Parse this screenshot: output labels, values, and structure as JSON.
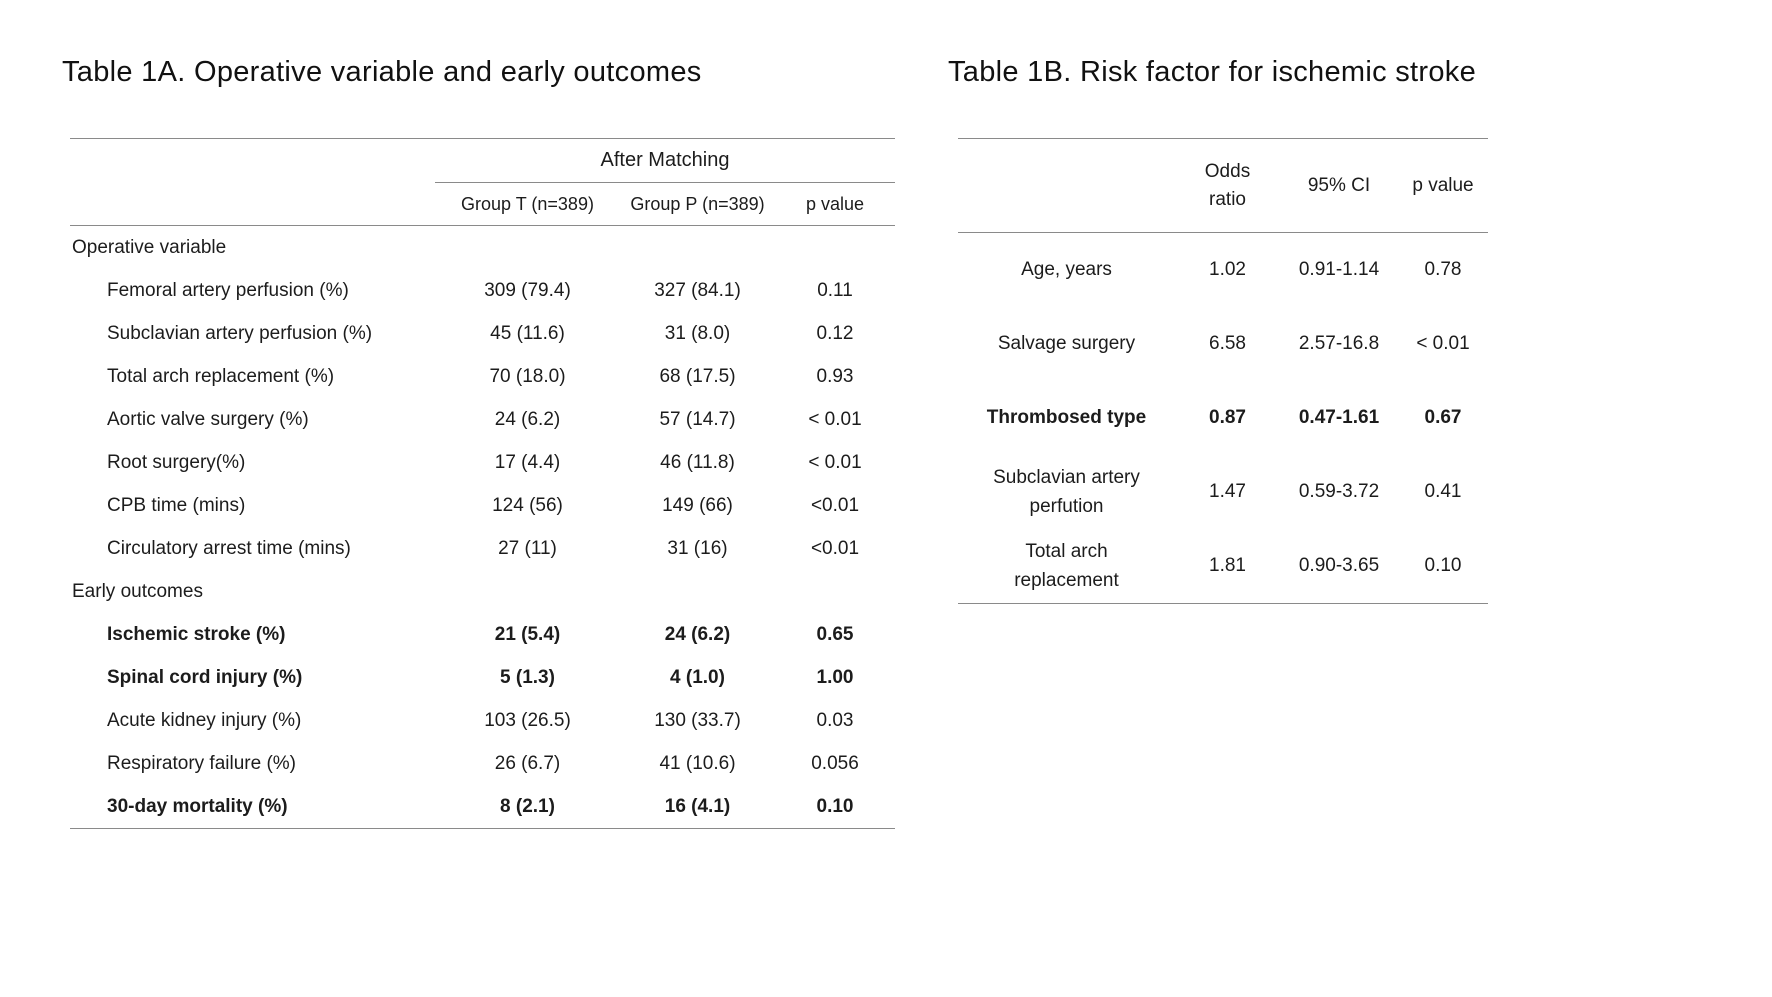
{
  "table_a": {
    "title": "Table 1A. Operative variable and early outcomes",
    "header": {
      "span_label": "After Matching",
      "columns": [
        "Group T (n=389)",
        "Group P (n=389)",
        "p value"
      ]
    },
    "sections": [
      {
        "label": "Operative variable",
        "rows": [
          {
            "label": "Femoral artery perfusion (%)",
            "group_t": "309 (79.4)",
            "group_p": "327 (84.1)",
            "p_value": "0.11",
            "bold": false
          },
          {
            "label": "Subclavian artery perfusion (%)",
            "group_t": "45 (11.6)",
            "group_p": "31 (8.0)",
            "p_value": "0.12",
            "bold": false
          },
          {
            "label": "Total arch replacement (%)",
            "group_t": "70 (18.0)",
            "group_p": "68 (17.5)",
            "p_value": "0.93",
            "bold": false
          },
          {
            "label": "Aortic valve surgery (%)",
            "group_t": "24 (6.2)",
            "group_p": "57 (14.7)",
            "p_value": "< 0.01",
            "bold": false
          },
          {
            "label": "Root surgery(%)",
            "group_t": "17 (4.4)",
            "group_p": "46 (11.8)",
            "p_value": "< 0.01",
            "bold": false
          },
          {
            "label": "CPB time (mins)",
            "group_t": "124 (56)",
            "group_p": "149 (66)",
            "p_value": "<0.01",
            "bold": false
          },
          {
            "label": "Circulatory arrest time (mins)",
            "group_t": "27 (11)",
            "group_p": "31 (16)",
            "p_value": "<0.01",
            "bold": false
          }
        ]
      },
      {
        "label": "Early outcomes",
        "rows": [
          {
            "label": "Ischemic stroke (%)",
            "group_t": "21 (5.4)",
            "group_p": "24 (6.2)",
            "p_value": "0.65",
            "bold": true
          },
          {
            "label": "Spinal cord injury (%)",
            "group_t": "5 (1.3)",
            "group_p": "4 (1.0)",
            "p_value": "1.00",
            "bold": true
          },
          {
            "label": "Acute kidney injury (%)",
            "group_t": "103 (26.5)",
            "group_p": "130 (33.7)",
            "p_value": "0.03",
            "bold": false
          },
          {
            "label": "Respiratory failure (%)",
            "group_t": "26 (6.7)",
            "group_p": "41 (10.6)",
            "p_value": "0.056",
            "bold": false
          },
          {
            "label": "30-day mortality (%)",
            "group_t": "8 (2.1)",
            "group_p": "16 (4.1)",
            "p_value": "0.10",
            "bold": true
          }
        ]
      }
    ]
  },
  "table_b": {
    "title": "Table 1B. Risk factor for ischemic stroke",
    "columns": [
      "Odds ratio",
      "95% CI",
      "p value"
    ],
    "rows": [
      {
        "label": "Age, years",
        "odds_ratio": "1.02",
        "ci": "0.91-1.14",
        "p_value": "0.78",
        "bold": false
      },
      {
        "label": "Salvage surgery",
        "odds_ratio": "6.58",
        "ci": "2.57-16.8",
        "p_value": "< 0.01",
        "bold": false
      },
      {
        "label": "Thrombosed type",
        "odds_ratio": "0.87",
        "ci": "0.47-1.61",
        "p_value": "0.67",
        "bold": true
      },
      {
        "label": "Subclavian artery perfution",
        "odds_ratio": "1.47",
        "ci": "0.59-3.72",
        "p_value": "0.41",
        "bold": false
      },
      {
        "label": "Total arch replacement",
        "odds_ratio": "1.81",
        "ci": "0.90-3.65",
        "p_value": "0.10",
        "bold": false
      }
    ]
  }
}
